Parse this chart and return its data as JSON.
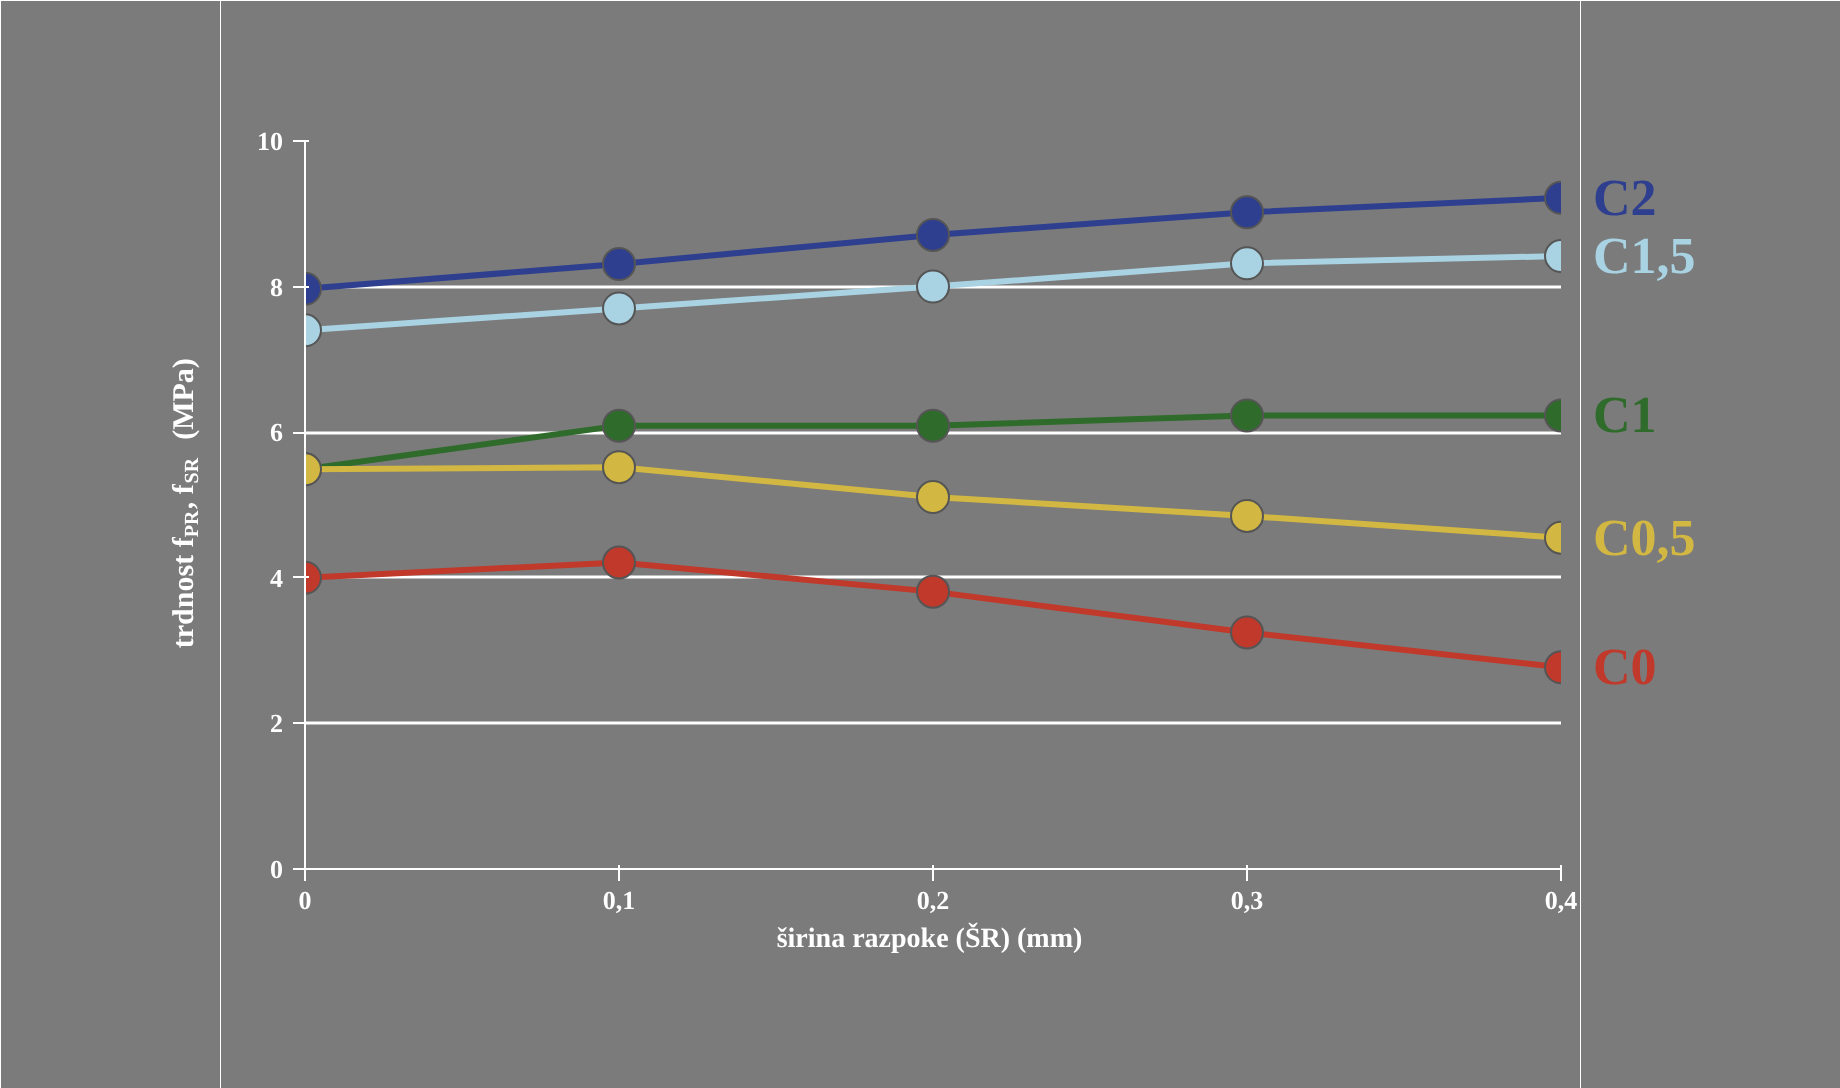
{
  "chart_data": {
    "type": "line",
    "xlabel": "širina razpoke (ŠR)  (mm)",
    "ylabel": "trdnost f$_{PR}$, f$_{SR}$  (MPa)",
    "x": [
      0,
      0.1,
      0.2,
      0.3,
      0.4
    ],
    "xlim": [
      0,
      0.4
    ],
    "xticks": [
      {
        "value": 0,
        "label": "0"
      },
      {
        "value": 0.1,
        "label": "0,1"
      },
      {
        "value": 0.2,
        "label": "0,2"
      },
      {
        "value": 0.3,
        "label": "0,3"
      },
      {
        "value": 0.4,
        "label": "0,4"
      }
    ],
    "ylim": [
      0,
      10
    ],
    "yticks": [
      0,
      2,
      4,
      6,
      8,
      10
    ],
    "grid": "y",
    "marker": "circle",
    "series": [
      {
        "name": "C2",
        "color": "#2e3f8f",
        "values": [
          7.97,
          8.31,
          8.71,
          9.02,
          9.22
        ]
      },
      {
        "name": "C1,5",
        "color": "#a9d3e3",
        "values": [
          7.4,
          7.7,
          8.0,
          8.32,
          8.42
        ]
      },
      {
        "name": "C1",
        "color": "#2f6b2a",
        "values": [
          5.49,
          6.09,
          6.09,
          6.23,
          6.23
        ]
      },
      {
        "name": "C0,5",
        "color": "#d2b842",
        "values": [
          5.49,
          5.52,
          5.11,
          4.85,
          4.55
        ]
      },
      {
        "name": "C0",
        "color": "#c0392b",
        "values": [
          4.0,
          4.21,
          3.81,
          3.25,
          2.77
        ]
      }
    ]
  }
}
